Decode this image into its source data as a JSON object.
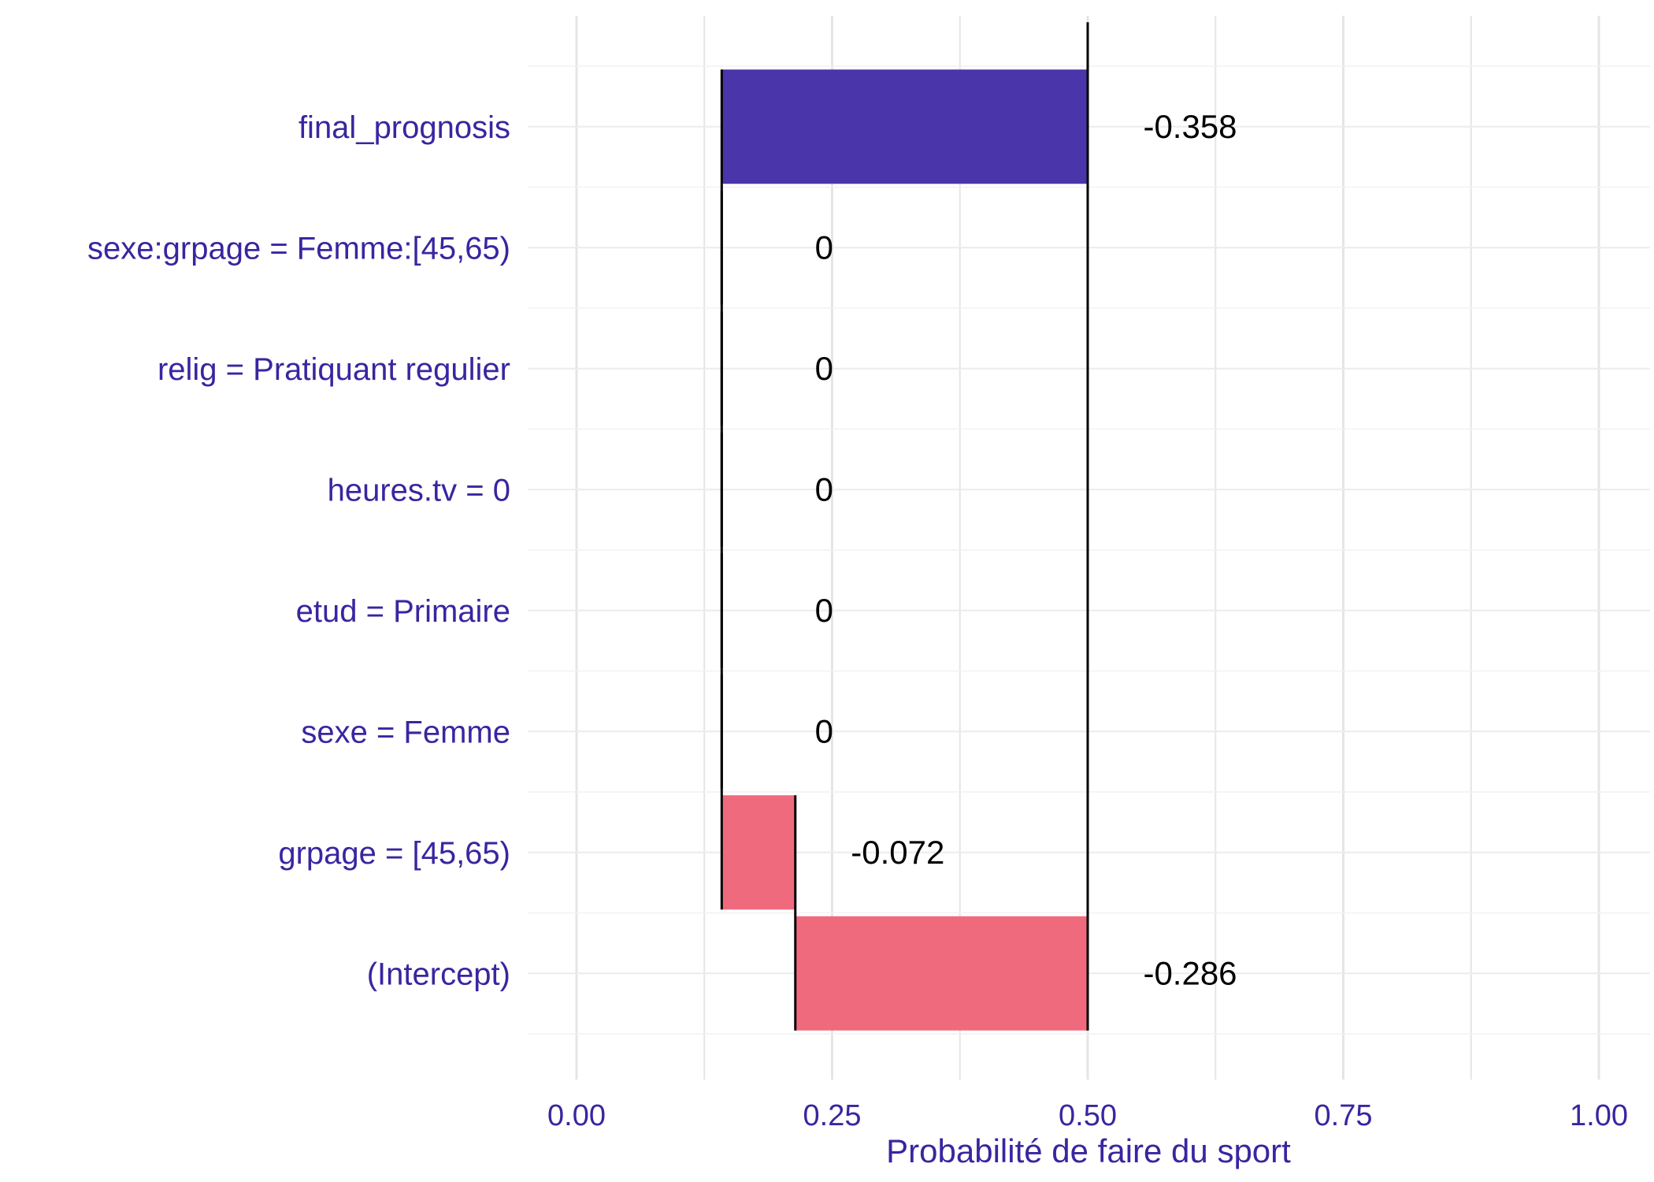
{
  "chart_data": {
    "type": "bar",
    "subtype": "break-down waterfall",
    "xlabel": "Probabilité de faire du sport",
    "xlim": [
      0,
      1
    ],
    "x_ticks": [
      "0.00",
      "0.25",
      "0.50",
      "0.75",
      "1.00"
    ],
    "x_tick_values": [
      0,
      0.25,
      0.5,
      0.75,
      1.0
    ],
    "baseline": 0.5,
    "grid": true,
    "legend": "none",
    "categories": [
      "final_prognosis",
      "sexe:grpage = Femme:[45,65)",
      "relig = Pratiquant regulier",
      "heures.tv = 0",
      "etud = Primaire",
      "sexe = Femme",
      "grpage = [45,65)",
      "(Intercept)"
    ],
    "starts": [
      0.5,
      0.142,
      0.142,
      0.142,
      0.142,
      0.142,
      0.214,
      0.5
    ],
    "ends": [
      0.142,
      0.142,
      0.142,
      0.142,
      0.142,
      0.142,
      0.142,
      0.214
    ],
    "labels": [
      "-0.358",
      "0",
      "0",
      "0",
      "0",
      "0",
      "-0.072",
      "-0.286"
    ],
    "kinds": [
      "prediction",
      "zero",
      "zero",
      "zero",
      "zero",
      "zero",
      "negative",
      "negative"
    ]
  },
  "colors": {
    "prediction": "#4b35aa",
    "negative": "#f06a7d",
    "axis_text": "#3a25a0",
    "grid": "#e5e5e5",
    "connector": "#000000",
    "value_text": "#000000"
  }
}
